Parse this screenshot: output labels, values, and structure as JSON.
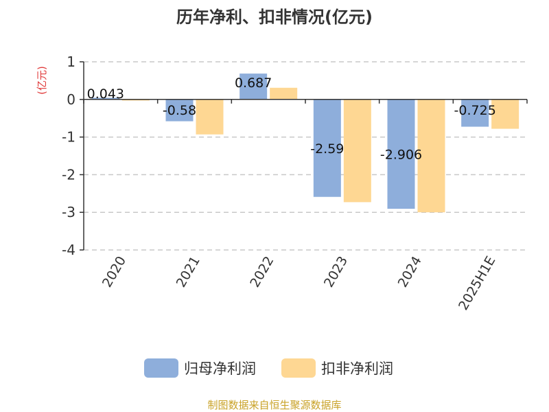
{
  "chart_data": {
    "type": "bar",
    "title": "历年净利、扣非情况(亿元)",
    "ylabel": "(亿元)",
    "categories": [
      "2020",
      "2021",
      "2022",
      "2023",
      "2024",
      "2025H1E"
    ],
    "yticks": [
      "1",
      "0",
      "-1",
      "-2",
      "-3",
      "-4"
    ],
    "ylim": [
      -4,
      1
    ],
    "grid": true,
    "legend": "bottom",
    "series": [
      {
        "name": "归母净利润",
        "color": "#8eaedb",
        "values": [
          0.043,
          -0.58,
          0.687,
          -2.59,
          -2.906,
          -0.725
        ],
        "labels": [
          "0.043",
          "-0.58",
          "0.687",
          "-2.59",
          "-2.906",
          "-0.725"
        ]
      },
      {
        "name": "扣非净利润",
        "color": "#fed793",
        "values": [
          -0.03,
          -0.93,
          0.31,
          -2.73,
          -3.0,
          -0.78
        ]
      }
    ]
  },
  "source": "制图数据来自恒生聚源数据库"
}
